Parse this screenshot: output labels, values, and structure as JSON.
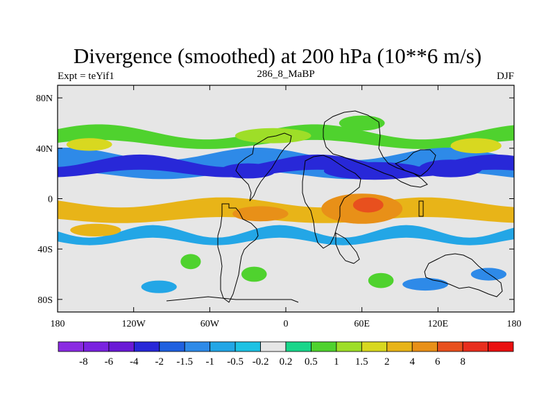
{
  "chart_data": {
    "type": "heatmap",
    "title": "Divergence (smoothed) at 200 hPa (10**6 m/s)",
    "subtitle_left": "Expt = teYif1",
    "subtitle_center": "286_8_MaBP",
    "subtitle_right": "DJF",
    "x_range": [
      -180,
      180
    ],
    "y_range": [
      -90,
      90
    ],
    "x_ticks": [
      {
        "value": -180,
        "label": "180"
      },
      {
        "value": -120,
        "label": "120W"
      },
      {
        "value": -60,
        "label": "60W"
      },
      {
        "value": 0,
        "label": "0"
      },
      {
        "value": 60,
        "label": "60E"
      },
      {
        "value": 120,
        "label": "120E"
      },
      {
        "value": 180,
        "label": "180"
      }
    ],
    "y_ticks": [
      {
        "value": 80,
        "label": "80N"
      },
      {
        "value": 40,
        "label": "40N"
      },
      {
        "value": 0,
        "label": "0"
      },
      {
        "value": -40,
        "label": "40S"
      },
      {
        "value": -80,
        "label": "80S"
      }
    ],
    "colorbar": {
      "colors": [
        "#8a2be2",
        "#7a22e0",
        "#6a1ad6",
        "#2828d8",
        "#1f60e0",
        "#2e8ae8",
        "#23a6e6",
        "#1ec2e4",
        "#e6e6e6",
        "#19d68a",
        "#4fd22e",
        "#9ede28",
        "#d8d820",
        "#e8b418",
        "#e89018",
        "#e8501e",
        "#e82e1e",
        "#ea1010"
      ],
      "labels": [
        "-8",
        "-6",
        "-4",
        "-2",
        "-1.5",
        "-1",
        "-0.5",
        "-0.2",
        "0.2",
        "0.5",
        "1",
        "1.5",
        "2",
        "4",
        "6",
        "8"
      ]
    },
    "bands": [
      {
        "name": "northern-green-band",
        "color": "#4fd22e",
        "lat_center": 48,
        "width": 10,
        "amp": 6,
        "wl": 170,
        "phase": 20
      },
      {
        "name": "northern-blue-band",
        "color": "#2e8ae8",
        "lat_center": 27,
        "width": 17,
        "amp": 5,
        "wl": 150,
        "phase": 60
      },
      {
        "name": "northern-dark-blue-band",
        "color": "#2828d8",
        "lat_center": 25,
        "width": 10,
        "amp": 5,
        "wl": 140,
        "phase": 10
      },
      {
        "name": "equatorial-yellow-band",
        "color": "#e8b418",
        "lat_center": -10,
        "width": 14,
        "amp": 4,
        "wl": 160,
        "phase": 90
      },
      {
        "name": "southern-blue-band",
        "color": "#23a6e6",
        "lat_center": -30,
        "width": 8,
        "amp": 5,
        "wl": 100,
        "phase": 30
      }
    ],
    "blobs": [
      {
        "lon": -155,
        "lat": 43,
        "rx": 18,
        "ry": 5,
        "color": "#d8d820"
      },
      {
        "lon": -10,
        "lat": 50,
        "rx": 30,
        "ry": 6,
        "color": "#9ede28"
      },
      {
        "lon": 60,
        "lat": 60,
        "rx": 18,
        "ry": 6,
        "color": "#4fd22e"
      },
      {
        "lon": 150,
        "lat": 42,
        "rx": 20,
        "ry": 6,
        "color": "#d8d820"
      },
      {
        "lon": -30,
        "lat": 22,
        "rx": 22,
        "ry": 6,
        "color": "#2828d8"
      },
      {
        "lon": 70,
        "lat": 22,
        "rx": 40,
        "ry": 7,
        "color": "#2828d8"
      },
      {
        "lon": 130,
        "lat": 24,
        "rx": 25,
        "ry": 7,
        "color": "#2828d8"
      },
      {
        "lon": 60,
        "lat": -8,
        "rx": 32,
        "ry": 12,
        "color": "#e89018"
      },
      {
        "lon": 65,
        "lat": -5,
        "rx": 12,
        "ry": 6,
        "color": "#e8501e"
      },
      {
        "lon": -20,
        "lat": -12,
        "rx": 22,
        "ry": 6,
        "color": "#e89018"
      },
      {
        "lon": -150,
        "lat": -25,
        "rx": 20,
        "ry": 5,
        "color": "#e8b418"
      },
      {
        "lon": -75,
        "lat": -50,
        "rx": 8,
        "ry": 6,
        "color": "#4fd22e"
      },
      {
        "lon": -25,
        "lat": -60,
        "rx": 10,
        "ry": 6,
        "color": "#4fd22e"
      },
      {
        "lon": 75,
        "lat": -65,
        "rx": 10,
        "ry": 6,
        "color": "#4fd22e"
      },
      {
        "lon": 110,
        "lat": -68,
        "rx": 18,
        "ry": 5,
        "color": "#2e8ae8"
      },
      {
        "lon": 160,
        "lat": -60,
        "rx": 14,
        "ry": 5,
        "color": "#2e8ae8"
      },
      {
        "lon": -100,
        "lat": -70,
        "rx": 14,
        "ry": 5,
        "color": "#23a6e6"
      }
    ]
  }
}
